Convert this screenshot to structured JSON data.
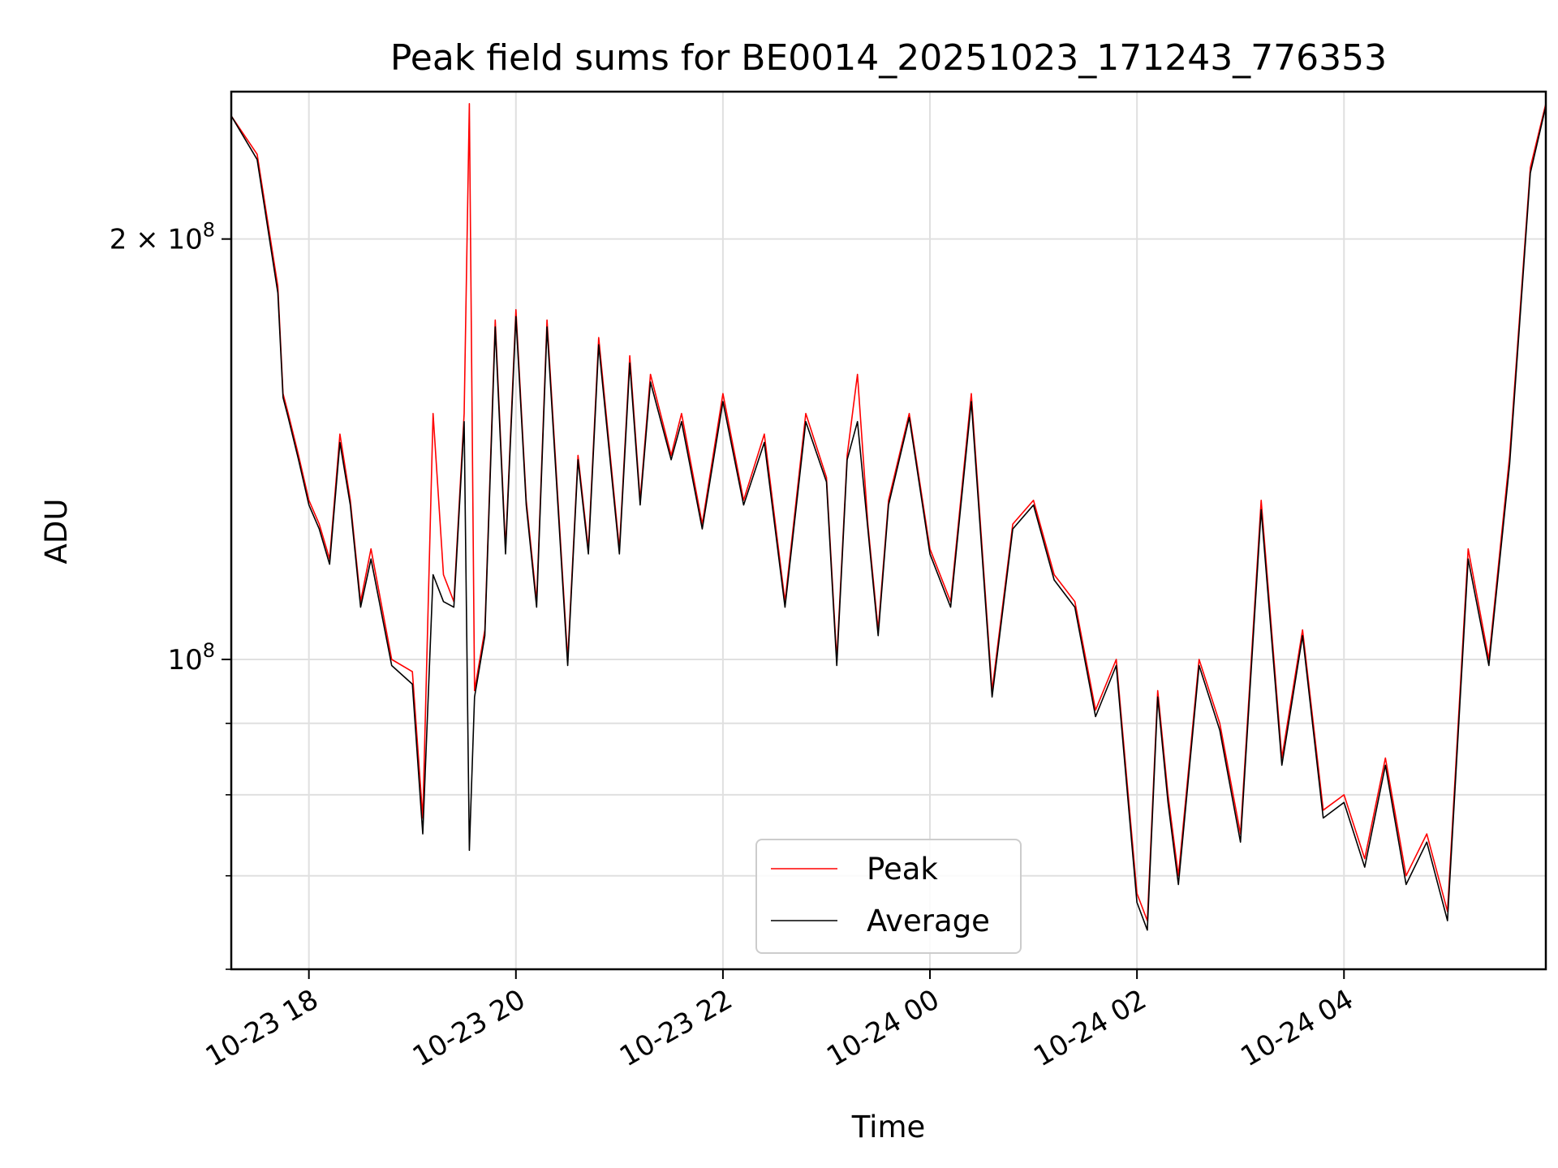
{
  "chart_data": {
    "type": "line",
    "title": "Peak field sums for BE0014_20251023_171243_776353",
    "xlabel": "Time",
    "ylabel": "ADU",
    "yscale": "log",
    "ylim": [
      60000000,
      255000000
    ],
    "xlim_hours": [
      -0.75,
      11.95
    ],
    "x_unit": "hours since 2025-10-23 18:00",
    "grid": true,
    "legend_position": "lower-center",
    "x_ticks": [
      {
        "label": "10-23 18",
        "hours": 0
      },
      {
        "label": "10-23 20",
        "hours": 2
      },
      {
        "label": "10-23 22",
        "hours": 4
      },
      {
        "label": "10-24 00",
        "hours": 6
      },
      {
        "label": "10-24 02",
        "hours": 8
      },
      {
        "label": "10-24 04",
        "hours": 10
      }
    ],
    "y_ticks": [
      {
        "base": "2 × 10",
        "exp": "8",
        "value": 200000000
      },
      {
        "base": "10",
        "exp": "8",
        "value": 100000000
      }
    ],
    "y_minor_ticks": [
      60000000,
      70000000,
      80000000,
      90000000
    ],
    "series": [
      {
        "name": "Peak",
        "color": "#ff0000",
        "x": [
          -0.75,
          -0.5,
          -0.3,
          -0.25,
          -0.2,
          -0.1,
          0,
          0.1,
          0.2,
          0.3,
          0.4,
          0.5,
          0.6,
          0.8,
          1.0,
          1.1,
          1.2,
          1.3,
          1.4,
          1.5,
          1.55,
          1.6,
          1.7,
          1.8,
          1.9,
          2.0,
          2.1,
          2.2,
          2.3,
          2.5,
          2.6,
          2.7,
          2.8,
          3.0,
          3.1,
          3.2,
          3.3,
          3.5,
          3.6,
          3.8,
          4.0,
          4.2,
          4.4,
          4.6,
          4.8,
          5.0,
          5.1,
          5.2,
          5.3,
          5.4,
          5.5,
          5.6,
          5.8,
          6.0,
          6.2,
          6.4,
          6.6,
          6.8,
          7.0,
          7.2,
          7.4,
          7.6,
          7.8,
          8.0,
          8.1,
          8.2,
          8.3,
          8.4,
          8.6,
          8.8,
          9.0,
          9.2,
          9.4,
          9.6,
          9.8,
          10.0,
          10.2,
          10.4,
          10.6,
          10.8,
          11.0,
          11.2,
          11.4,
          11.6,
          11.8,
          11.95
        ],
        "values": [
          245000000,
          230000000,
          185000000,
          155000000,
          150000000,
          140000000,
          130000000,
          125000000,
          118000000,
          145000000,
          130000000,
          110000000,
          120000000,
          100000000,
          98000000,
          77000000,
          150000000,
          115000000,
          110000000,
          150000000,
          250000000,
          95000000,
          105000000,
          175000000,
          120000000,
          178000000,
          130000000,
          110000000,
          175000000,
          100000000,
          140000000,
          120000000,
          170000000,
          120000000,
          165000000,
          130000000,
          160000000,
          140000000,
          150000000,
          125000000,
          155000000,
          130000000,
          145000000,
          110000000,
          150000000,
          135000000,
          100000000,
          140000000,
          160000000,
          125000000,
          105000000,
          130000000,
          150000000,
          120000000,
          110000000,
          155000000,
          95000000,
          125000000,
          130000000,
          115000000,
          110000000,
          92000000,
          100000000,
          68000000,
          65000000,
          95000000,
          80000000,
          70000000,
          100000000,
          90000000,
          75000000,
          130000000,
          85000000,
          105000000,
          78000000,
          80000000,
          72000000,
          85000000,
          70000000,
          75000000,
          66000000,
          120000000,
          100000000,
          140000000,
          225000000,
          250000000
        ]
      },
      {
        "name": "Average",
        "color": "#000000",
        "x": [
          -0.75,
          -0.5,
          -0.3,
          -0.25,
          -0.2,
          -0.1,
          0,
          0.1,
          0.2,
          0.3,
          0.4,
          0.5,
          0.6,
          0.8,
          1.0,
          1.1,
          1.2,
          1.3,
          1.4,
          1.5,
          1.55,
          1.6,
          1.7,
          1.8,
          1.9,
          2.0,
          2.1,
          2.2,
          2.3,
          2.5,
          2.6,
          2.7,
          2.8,
          3.0,
          3.1,
          3.2,
          3.3,
          3.5,
          3.6,
          3.8,
          4.0,
          4.2,
          4.4,
          4.6,
          4.8,
          5.0,
          5.1,
          5.2,
          5.3,
          5.4,
          5.5,
          5.6,
          5.8,
          6.0,
          6.2,
          6.4,
          6.6,
          6.8,
          7.0,
          7.2,
          7.4,
          7.6,
          7.8,
          8.0,
          8.1,
          8.2,
          8.3,
          8.4,
          8.6,
          8.8,
          9.0,
          9.2,
          9.4,
          9.6,
          9.8,
          10.0,
          10.2,
          10.4,
          10.6,
          10.8,
          11.0,
          11.2,
          11.4,
          11.6,
          11.8,
          11.95
        ],
        "values": [
          245000000,
          228000000,
          183000000,
          154000000,
          149000000,
          139000000,
          129000000,
          124000000,
          117000000,
          143000000,
          129000000,
          109000000,
          118000000,
          99000000,
          96000000,
          75000000,
          115000000,
          110000000,
          109000000,
          148000000,
          73000000,
          94000000,
          104000000,
          173000000,
          119000000,
          176000000,
          129000000,
          109000000,
          173000000,
          99000000,
          139000000,
          119000000,
          168000000,
          119000000,
          163000000,
          129000000,
          158000000,
          139000000,
          148000000,
          124000000,
          153000000,
          129000000,
          143000000,
          109000000,
          148000000,
          134000000,
          99000000,
          139000000,
          148000000,
          124000000,
          104000000,
          129000000,
          149000000,
          119000000,
          109000000,
          153000000,
          94000000,
          124000000,
          129000000,
          114000000,
          109000000,
          91000000,
          99000000,
          67000000,
          64000000,
          94000000,
          79000000,
          69000000,
          99000000,
          89000000,
          74000000,
          128000000,
          84000000,
          104000000,
          77000000,
          79000000,
          71000000,
          84000000,
          69000000,
          74000000,
          65000000,
          118000000,
          99000000,
          138000000,
          223000000,
          249000000
        ]
      }
    ]
  }
}
